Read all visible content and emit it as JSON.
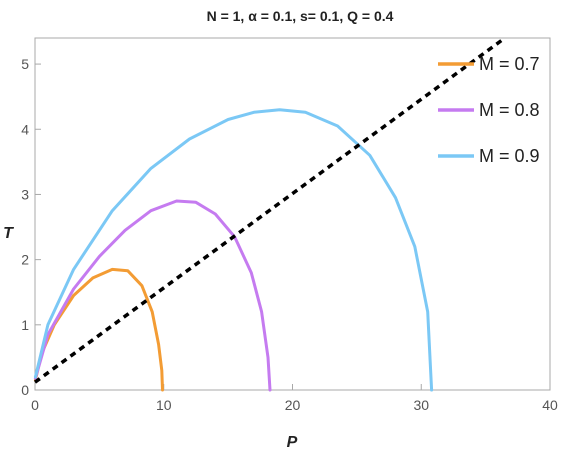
{
  "chart_data": {
    "type": "line",
    "title": "N = 1, α = 0.1, s= 0.1, Q = 0.4",
    "xlabel": "P",
    "ylabel": "T",
    "xlim": [
      0,
      40
    ],
    "ylim": [
      0,
      5.4
    ],
    "xticks": [
      0,
      10,
      20,
      30,
      40
    ],
    "yticks": [
      0,
      1,
      2,
      3,
      4,
      5
    ],
    "grid": false,
    "legend_position": "top-right",
    "series": [
      {
        "name": "M = 0.7",
        "color": "#F39C34",
        "x": [
          0.03,
          0.5,
          1.5,
          3,
          4.5,
          6,
          7.2,
          8.3,
          9.1,
          9.6,
          9.85,
          9.9
        ],
        "y": [
          0.15,
          0.55,
          1.0,
          1.45,
          1.72,
          1.85,
          1.83,
          1.6,
          1.2,
          0.7,
          0.3,
          0.0
        ]
      },
      {
        "name": "M = 0.8",
        "color": "#C57BF0",
        "x": [
          0.03,
          1,
          3,
          5,
          7,
          9,
          11,
          12.5,
          14,
          15.5,
          16.8,
          17.6,
          18.1,
          18.25
        ],
        "y": [
          0.18,
          0.85,
          1.55,
          2.05,
          2.45,
          2.75,
          2.9,
          2.88,
          2.7,
          2.35,
          1.8,
          1.2,
          0.5,
          0.0
        ]
      },
      {
        "name": "M = 0.9",
        "color": "#7BC8F5",
        "x": [
          0.03,
          1,
          3,
          6,
          9,
          12,
          15,
          17,
          19,
          21,
          23.5,
          26,
          28,
          29.5,
          30.5,
          30.8
        ],
        "y": [
          0.2,
          1.0,
          1.85,
          2.75,
          3.4,
          3.85,
          4.15,
          4.26,
          4.3,
          4.26,
          4.05,
          3.6,
          2.95,
          2.2,
          1.2,
          0.0
        ]
      },
      {
        "name": "",
        "color": "#000000",
        "dashed": true,
        "x": [
          0,
          36.5
        ],
        "y": [
          0.12,
          5.4
        ]
      }
    ]
  }
}
